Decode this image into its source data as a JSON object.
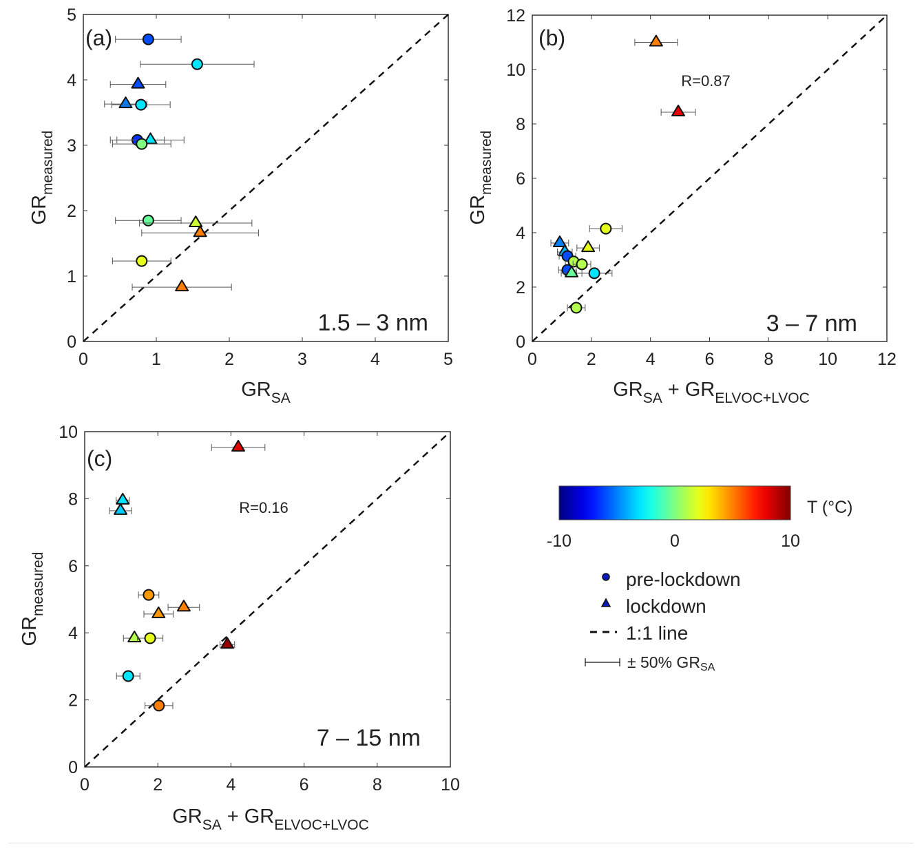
{
  "chart_data": [
    {
      "type": "scatter",
      "panel_label": "(a)",
      "size_label": "1.5 – 3 nm",
      "annotation": "",
      "xlabel": [
        {
          "t": "GR",
          "sub": false
        },
        {
          "t": "SA",
          "sub": true
        }
      ],
      "ylabel": [
        {
          "t": "GR",
          "sub": false
        },
        {
          "t": "measured",
          "sub": true
        }
      ],
      "xlim": [
        0,
        5
      ],
      "ylim": [
        0,
        5
      ],
      "xticks": [
        0,
        1,
        2,
        3,
        4,
        5
      ],
      "yticks": [
        0,
        1,
        2,
        3,
        4,
        5
      ],
      "one_to_one_line": true,
      "points": [
        {
          "x": 0.89,
          "y": 4.62,
          "xerr": 0.45,
          "T": -6,
          "marker": "circle"
        },
        {
          "x": 1.56,
          "y": 4.24,
          "xerr": 0.78,
          "T": -3,
          "marker": "circle"
        },
        {
          "x": 0.75,
          "y": 3.93,
          "xerr": 0.38,
          "T": -6,
          "marker": "triangle"
        },
        {
          "x": 0.58,
          "y": 3.63,
          "xerr": 0.29,
          "T": -5,
          "marker": "triangle"
        },
        {
          "x": 0.79,
          "y": 3.62,
          "xerr": 0.4,
          "T": -3,
          "marker": "circle"
        },
        {
          "x": 0.74,
          "y": 3.08,
          "xerr": 0.37,
          "T": -6.5,
          "marker": "circle"
        },
        {
          "x": 0.92,
          "y": 3.08,
          "xerr": 0.46,
          "T": -3,
          "marker": "triangle"
        },
        {
          "x": 0.8,
          "y": 3.02,
          "xerr": 0.4,
          "T": 0,
          "marker": "circle"
        },
        {
          "x": 0.89,
          "y": 1.85,
          "xerr": 0.45,
          "T": -0.5,
          "marker": "circle"
        },
        {
          "x": 1.54,
          "y": 1.81,
          "xerr": 0.77,
          "T": 1.5,
          "marker": "triangle"
        },
        {
          "x": 1.6,
          "y": 1.66,
          "xerr": 0.8,
          "T": 5,
          "marker": "triangle"
        },
        {
          "x": 0.8,
          "y": 1.23,
          "xerr": 0.4,
          "T": 2,
          "marker": "circle"
        },
        {
          "x": 1.35,
          "y": 0.83,
          "xerr": 0.68,
          "T": 5,
          "marker": "triangle"
        }
      ]
    },
    {
      "type": "scatter",
      "panel_label": "(b)",
      "size_label": "3 – 7 nm",
      "annotation": "R=0.87",
      "xlabel": [
        {
          "t": "GR",
          "sub": false
        },
        {
          "t": "SA",
          "sub": true
        },
        {
          "t": " + GR",
          "sub": false
        },
        {
          "t": "ELVOC+LVOC",
          "sub": true
        }
      ],
      "ylabel": [
        {
          "t": "GR",
          "sub": false
        },
        {
          "t": "measured",
          "sub": true
        }
      ],
      "xlim": [
        0,
        12
      ],
      "ylim": [
        0,
        12
      ],
      "xticks": [
        0,
        2,
        4,
        6,
        8,
        10,
        12
      ],
      "yticks": [
        0,
        2,
        4,
        6,
        8,
        10,
        12
      ],
      "one_to_one_line": true,
      "points": [
        {
          "x": 4.19,
          "y": 11.0,
          "xerr": 0.72,
          "T": 5,
          "marker": "triangle"
        },
        {
          "x": 4.94,
          "y": 8.43,
          "xerr": 0.58,
          "T": 8,
          "marker": "triangle"
        },
        {
          "x": 2.49,
          "y": 4.15,
          "xerr": 0.55,
          "T": 2,
          "marker": "circle"
        },
        {
          "x": 0.93,
          "y": 3.62,
          "xerr": 0.3,
          "T": -5,
          "marker": "triangle"
        },
        {
          "x": 1.89,
          "y": 3.44,
          "xerr": 0.38,
          "T": 2,
          "marker": "triangle"
        },
        {
          "x": 1.1,
          "y": 3.29,
          "xerr": 0.25,
          "T": -4,
          "marker": "triangle"
        },
        {
          "x": 1.19,
          "y": 3.14,
          "xerr": 0.28,
          "T": -6,
          "marker": "circle"
        },
        {
          "x": 1.4,
          "y": 2.94,
          "xerr": 0.28,
          "T": 1,
          "marker": "circle"
        },
        {
          "x": 1.68,
          "y": 2.84,
          "xerr": 0.3,
          "T": 1,
          "marker": "circle"
        },
        {
          "x": 1.19,
          "y": 2.63,
          "xerr": 0.3,
          "T": -6,
          "marker": "circle"
        },
        {
          "x": 2.1,
          "y": 2.51,
          "xerr": 0.6,
          "T": -3,
          "marker": "circle"
        },
        {
          "x": 1.33,
          "y": 2.51,
          "xerr": 0.35,
          "T": -0.5,
          "marker": "triangle"
        },
        {
          "x": 1.49,
          "y": 1.24,
          "xerr": 0.3,
          "T": 1,
          "marker": "circle"
        }
      ]
    },
    {
      "type": "scatter",
      "panel_label": "(c)",
      "size_label": "7 – 15 nm",
      "annotation": "R=0.16",
      "xlabel": [
        {
          "t": "GR",
          "sub": false
        },
        {
          "t": "SA",
          "sub": true
        },
        {
          "t": " + GR",
          "sub": false
        },
        {
          "t": "ELVOC+LVOC",
          "sub": true
        }
      ],
      "ylabel": [
        {
          "t": "GR",
          "sub": false
        },
        {
          "t": "measured",
          "sub": true
        }
      ],
      "xlim": [
        0,
        10
      ],
      "ylim": [
        0,
        10
      ],
      "xticks": [
        0,
        2,
        4,
        6,
        8,
        10
      ],
      "yticks": [
        0,
        2,
        4,
        6,
        8,
        10
      ],
      "one_to_one_line": true,
      "points": [
        {
          "x": 4.2,
          "y": 9.53,
          "xerr": 0.73,
          "T": 8,
          "marker": "triangle"
        },
        {
          "x": 1.04,
          "y": 7.95,
          "xerr": 0.18,
          "T": -3,
          "marker": "triangle"
        },
        {
          "x": 0.98,
          "y": 7.64,
          "xerr": 0.3,
          "T": -3.5,
          "marker": "triangle"
        },
        {
          "x": 1.75,
          "y": 5.13,
          "xerr": 0.28,
          "T": 4.5,
          "marker": "circle"
        },
        {
          "x": 2.71,
          "y": 4.76,
          "xerr": 0.43,
          "T": 5,
          "marker": "triangle"
        },
        {
          "x": 2.02,
          "y": 4.56,
          "xerr": 0.4,
          "T": 4.5,
          "marker": "triangle"
        },
        {
          "x": 1.36,
          "y": 3.84,
          "xerr": 0.3,
          "T": 1,
          "marker": "triangle"
        },
        {
          "x": 1.79,
          "y": 3.84,
          "xerr": 0.35,
          "T": 2,
          "marker": "circle"
        },
        {
          "x": 3.9,
          "y": 3.65,
          "xerr": 0.2,
          "T": 9.5,
          "marker": "triangle"
        },
        {
          "x": 1.19,
          "y": 2.71,
          "xerr": 0.32,
          "T": -3,
          "marker": "circle"
        },
        {
          "x": 2.03,
          "y": 1.83,
          "xerr": 0.38,
          "T": 5,
          "marker": "circle"
        }
      ]
    }
  ],
  "colorbar": {
    "label": "T (°C)",
    "range": [
      -10,
      10
    ],
    "colormap": "jet",
    "ticks": [
      "-10",
      "0",
      "10"
    ]
  },
  "legend": {
    "items": [
      {
        "label": "pre-lockdown",
        "symbol": "circle"
      },
      {
        "label": "lockdown",
        "symbol": "triangle"
      },
      {
        "label": "1:1 line",
        "symbol": "dashed-line"
      },
      {
        "label": "± 50% GR",
        "sub": "SA",
        "symbol": "error-bar"
      }
    ],
    "symbol_color": "#0a1ab8"
  }
}
